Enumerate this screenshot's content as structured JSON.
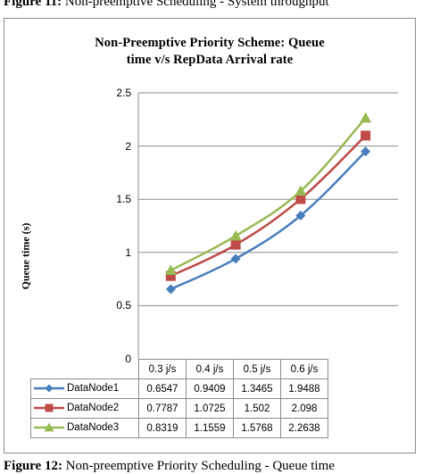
{
  "captions": {
    "top_label": "Figure 11:",
    "top_text": " Non-preemptive Scheduling - System throughput",
    "bottom_label": "Figure 12:",
    "bottom_text": " Non-preemptive Priority Scheduling - Queue time"
  },
  "chart_data": {
    "type": "line",
    "title_line1": "Non-Preemptive Priority Scheme: Queue",
    "title_line2": "time  v/s RepData Arrival rate",
    "xlabel": "",
    "ylabel": "Queue time (s)",
    "ylim": [
      0,
      2.5
    ],
    "yticks": [
      "0",
      "0.5",
      "1",
      "1.5",
      "2",
      "2.5"
    ],
    "grid": "horizontal",
    "legend": "data-table",
    "categories": [
      "0.3 j/s",
      "0.4 j/s",
      "0.5 j/s",
      "0.6 j/s"
    ],
    "series": [
      {
        "name": "DataNode1",
        "color": "#4a7ebb",
        "marker": "diamond",
        "values": [
          0.6547,
          0.9409,
          1.3465,
          1.9488
        ],
        "labels": [
          "0.6547",
          "0.9409",
          "1.3465",
          "1.9488"
        ]
      },
      {
        "name": "DataNode2",
        "color": "#be4b48",
        "marker": "square",
        "values": [
          0.7787,
          1.0725,
          1.502,
          2.098
        ],
        "labels": [
          "0.7787",
          "1.0725",
          "1.502",
          "2.098"
        ]
      },
      {
        "name": "DataNode3",
        "color": "#98b954",
        "marker": "triangle",
        "values": [
          0.8319,
          1.1559,
          1.5768,
          2.2638
        ],
        "labels": [
          "0.8319",
          "1.1559",
          "1.5768",
          "2.2638"
        ]
      }
    ]
  }
}
